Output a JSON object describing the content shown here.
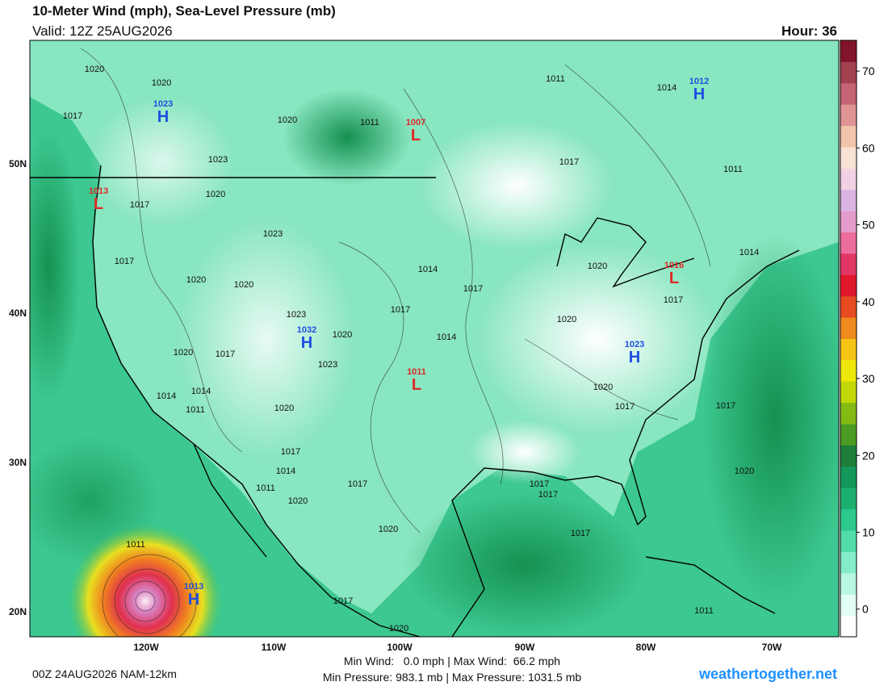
{
  "header": {
    "title": "10-Meter Wind (mph), Sea-Level Pressure (mb)",
    "valid": "Valid: 12Z 25AUG2026",
    "hour": "Hour: 36"
  },
  "map": {
    "lat_labels": [
      "50N",
      "40N",
      "30N",
      "20N"
    ],
    "lon_labels": [
      "120W",
      "110W",
      "100W",
      "90W",
      "80W",
      "70W"
    ],
    "isobar_labels": [
      "1020",
      "1020",
      "1020",
      "1011",
      "1011",
      "1014",
      "1017",
      "1023",
      "1017",
      "1011",
      "1020",
      "1017",
      "1023",
      "1017",
      "1014",
      "1017",
      "1020",
      "1014",
      "1020",
      "1020",
      "1017",
      "1017",
      "1023",
      "1020",
      "1020",
      "1014",
      "1020",
      "1017",
      "1023",
      "1014",
      "1014",
      "1011",
      "1020",
      "1020",
      "1017",
      "1017",
      "1017",
      "1014",
      "1011",
      "1017",
      "1017",
      "1017",
      "1020",
      "1020",
      "1020",
      "1017",
      "1011",
      "1017",
      "1020",
      "1011"
    ],
    "centers": [
      {
        "symbol": "H",
        "pressure": "1023",
        "color": "#1f4fe0"
      },
      {
        "symbol": "L",
        "pressure": "1007",
        "color": "#e02828"
      },
      {
        "symbol": "L",
        "pressure": "1013",
        "color": "#e02828"
      },
      {
        "symbol": "L",
        "pressure": "1016",
        "color": "#e02828"
      },
      {
        "symbol": "H",
        "pressure": "1032",
        "color": "#1f4fe0"
      },
      {
        "symbol": "L",
        "pressure": "1011",
        "color": "#e02828"
      },
      {
        "symbol": "H",
        "pressure": "1023",
        "color": "#1f4fe0"
      },
      {
        "symbol": "H",
        "pressure": "1012",
        "color": "#1f4fe0"
      },
      {
        "symbol": "H",
        "pressure": "1013",
        "color": "#1f4fe0"
      }
    ]
  },
  "colorbar": {
    "ticks": [
      0,
      10,
      20,
      30,
      40,
      50,
      60,
      70
    ],
    "lim": [
      -3.6,
      74
    ],
    "colors": [
      "#ffffff",
      "#e2fff5",
      "#b8f7e0",
      "#84ecc8",
      "#52dcaa",
      "#2cc88c",
      "#1cb070",
      "#12985a",
      "#1c7e38",
      "#4a9c22",
      "#84ba14",
      "#c2d806",
      "#eee80a",
      "#f6c414",
      "#ee8a1e",
      "#e84a22",
      "#e0182c",
      "#e23664",
      "#ec6c9c",
      "#e49ccc",
      "#dcb4e2",
      "#f0d2e4",
      "#f8e2d4",
      "#f2c4aa",
      "#e09494",
      "#c46474",
      "#a24050",
      "#82142a"
    ]
  },
  "footer": {
    "run": "00Z 24AUG2026 NAM-12km",
    "wind": "Min Wind:   0.0 mph | Max Wind:  66.2 mph",
    "pressure": "Min Pressure: 983.1 mb | Max Pressure: 1031.5 mb",
    "site": "weathertogether.net"
  }
}
